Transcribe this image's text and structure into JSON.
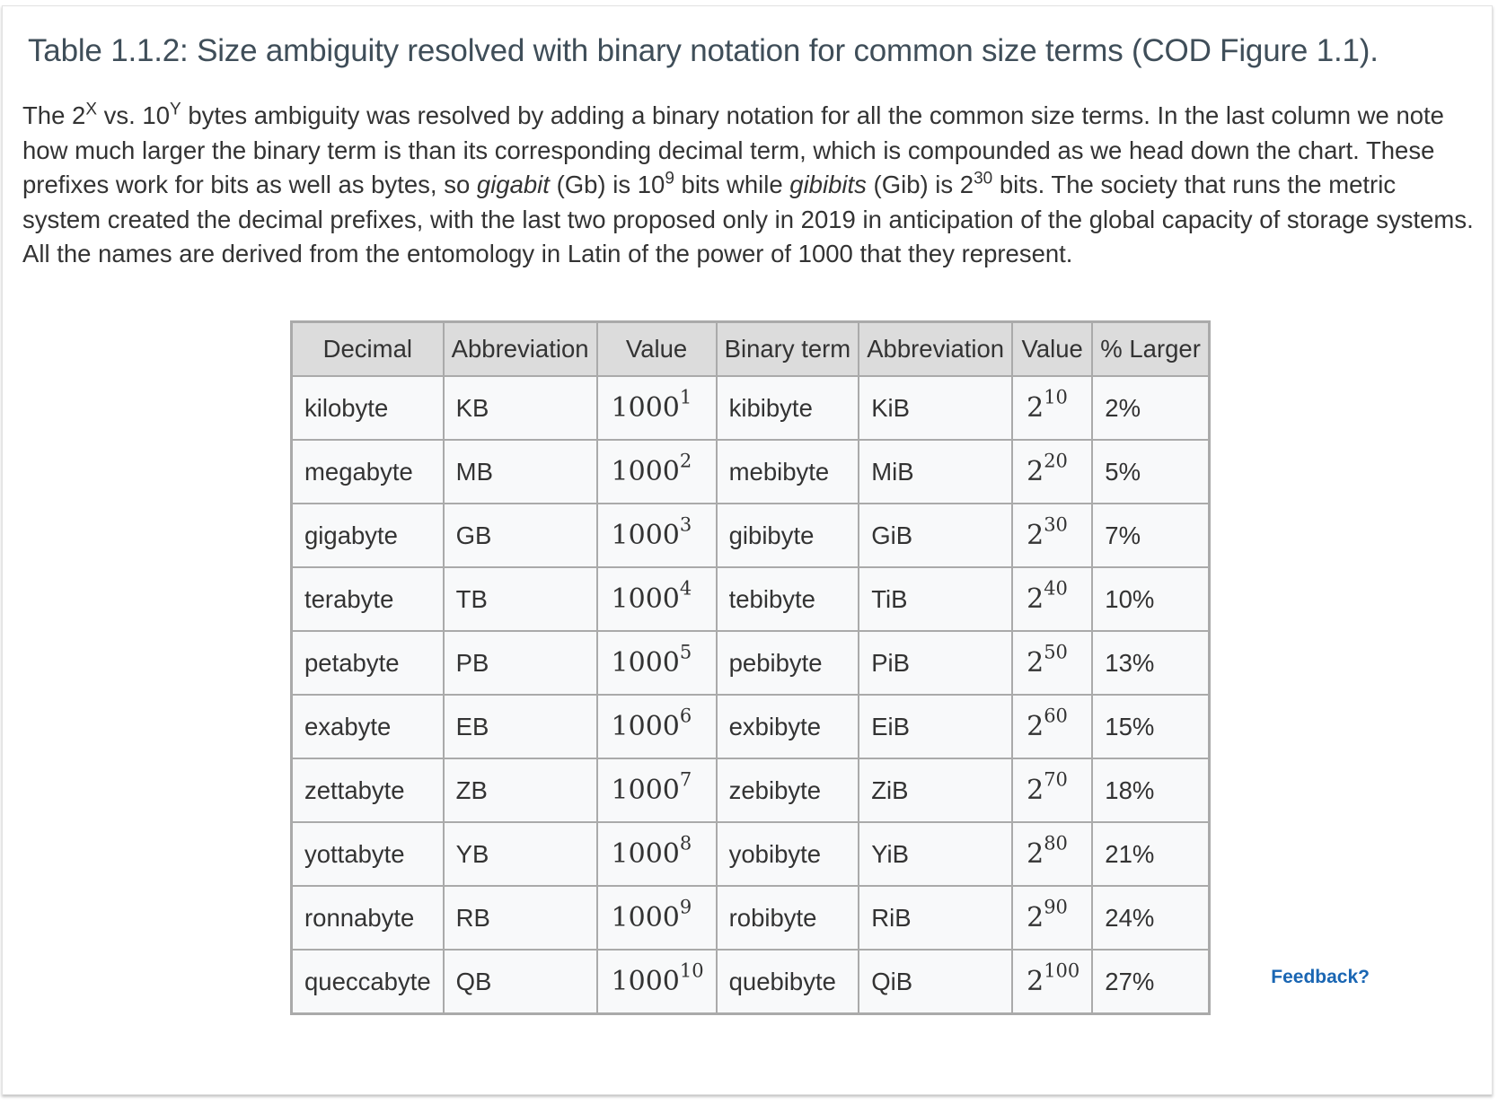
{
  "caption": {
    "title": "Table 1.1.2: Size ambiguity resolved with binary notation for common size terms (COD Figure 1.1).",
    "intro_1": "The 2",
    "sup_x": "X",
    "intro_2": " vs. 10",
    "sup_y": "Y",
    "intro_3": " bytes ambiguity was resolved by adding a binary notation for all the common size terms. In the last column we note how much larger the binary term is than its corresponding decimal term, which is compounded as we head down the chart. These prefixes work for bits as well as bytes, so ",
    "italic_gigabit": "gigabit",
    "intro_4": " (Gb) is 10",
    "sup_9": "9",
    "intro_5": " bits while ",
    "italic_gibibits": "gibibits",
    "intro_6": " (Gib) is 2",
    "sup_30": "30",
    "intro_7": " bits. The society that runs the metric system created the decimal prefixes, with the last two proposed only in 2019 in anticipation of the global capacity of storage systems. All the names are derived from the entomology in Latin of the power of 1000 that they represent."
  },
  "table": {
    "headers": [
      "Decimal",
      "Abbreviation",
      "Value",
      "Binary term",
      "Abbreviation",
      "Value",
      "% Larger"
    ],
    "rows": [
      {
        "decimal": "kilobyte",
        "abbr": "KB",
        "val_base": "1000",
        "val_exp": "1",
        "binary": "kibibyte",
        "babbr": "KiB",
        "bval_base": "2",
        "bval_exp": "10",
        "pct": "2%"
      },
      {
        "decimal": "megabyte",
        "abbr": "MB",
        "val_base": "1000",
        "val_exp": "2",
        "binary": "mebibyte",
        "babbr": "MiB",
        "bval_base": "2",
        "bval_exp": "20",
        "pct": "5%"
      },
      {
        "decimal": "gigabyte",
        "abbr": "GB",
        "val_base": "1000",
        "val_exp": "3",
        "binary": "gibibyte",
        "babbr": "GiB",
        "bval_base": "2",
        "bval_exp": "30",
        "pct": "7%"
      },
      {
        "decimal": "terabyte",
        "abbr": "TB",
        "val_base": "1000",
        "val_exp": "4",
        "binary": "tebibyte",
        "babbr": "TiB",
        "bval_base": "2",
        "bval_exp": "40",
        "pct": "10%"
      },
      {
        "decimal": "petabyte",
        "abbr": "PB",
        "val_base": "1000",
        "val_exp": "5",
        "binary": "pebibyte",
        "babbr": "PiB",
        "bval_base": "2",
        "bval_exp": "50",
        "pct": "13%"
      },
      {
        "decimal": "exabyte",
        "abbr": "EB",
        "val_base": "1000",
        "val_exp": "6",
        "binary": "exbibyte",
        "babbr": "EiB",
        "bval_base": "2",
        "bval_exp": "60",
        "pct": "15%"
      },
      {
        "decimal": "zettabyte",
        "abbr": "ZB",
        "val_base": "1000",
        "val_exp": "7",
        "binary": "zebibyte",
        "babbr": "ZiB",
        "bval_base": "2",
        "bval_exp": "70",
        "pct": "18%"
      },
      {
        "decimal": "yottabyte",
        "abbr": "YB",
        "val_base": "1000",
        "val_exp": "8",
        "binary": "yobibyte",
        "babbr": "YiB",
        "bval_base": "2",
        "bval_exp": "80",
        "pct": "21%"
      },
      {
        "decimal": "ronnabyte",
        "abbr": "RB",
        "val_base": "1000",
        "val_exp": "9",
        "binary": "robibyte",
        "babbr": "RiB",
        "bval_base": "2",
        "bval_exp": "90",
        "pct": "24%"
      },
      {
        "decimal": "queccabyte",
        "abbr": "QB",
        "val_base": "1000",
        "val_exp": "10",
        "binary": "quebibyte",
        "babbr": "QiB",
        "bval_base": "2",
        "bval_exp": "100",
        "pct": "27%"
      }
    ]
  },
  "feedback_label": "Feedback?",
  "colors": {
    "title": "#3f4e59",
    "header_bg": "#dcdcdc",
    "cell_bg": "#f8f9fa",
    "border": "#aaaaaa",
    "link": "#1a66b3"
  }
}
